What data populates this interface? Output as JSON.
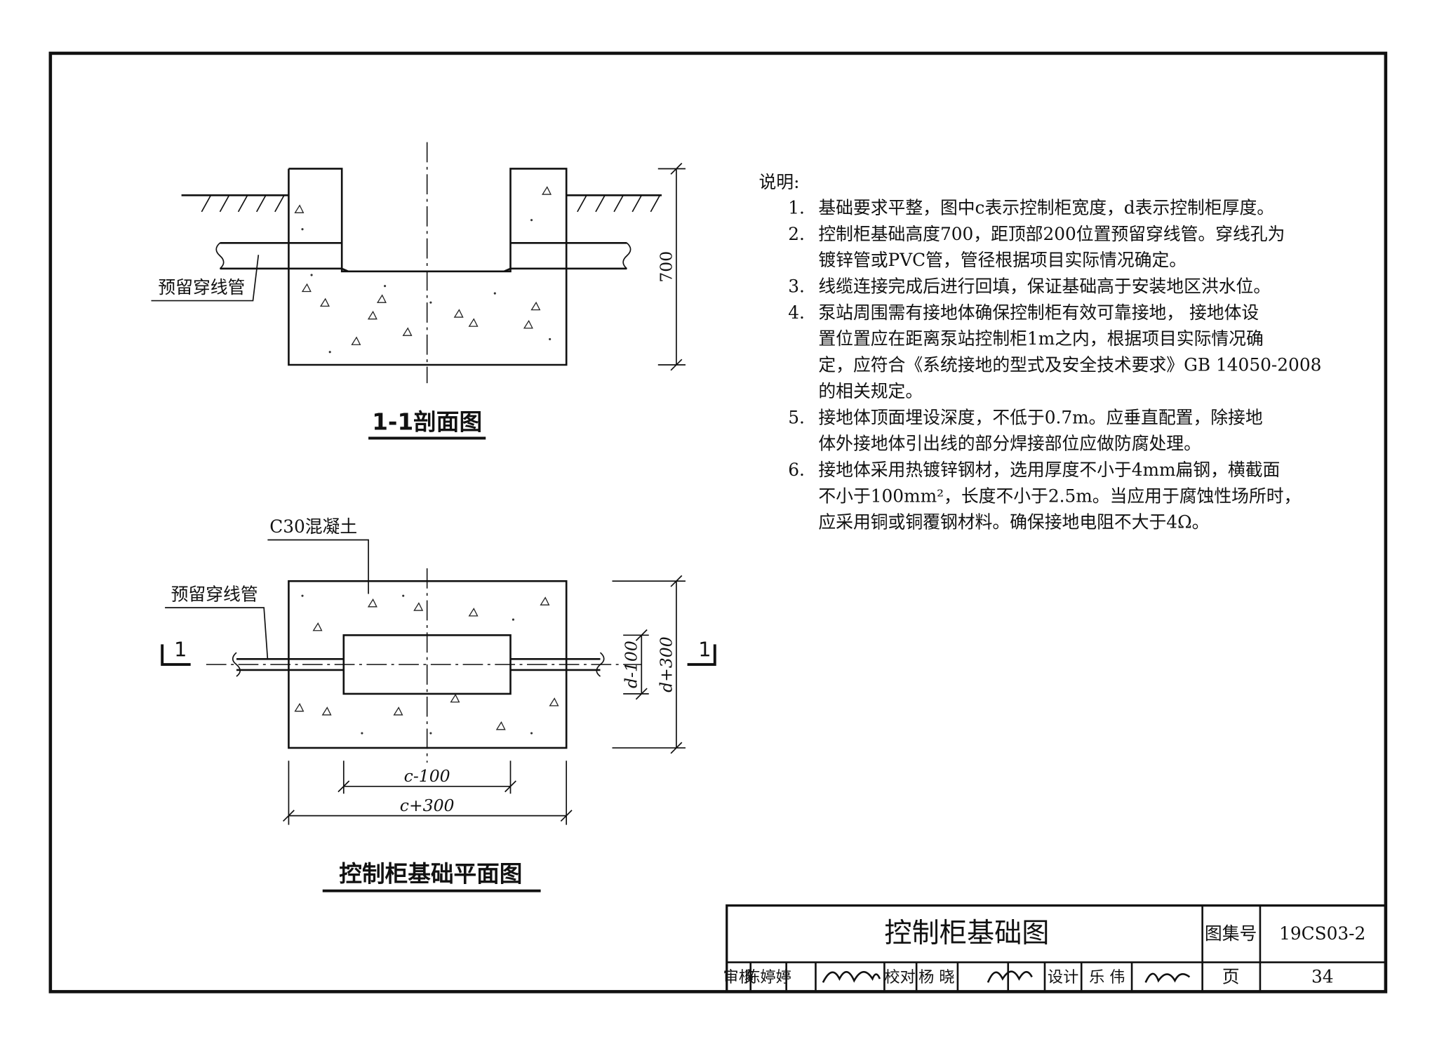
{
  "section_view": {
    "title": "1-1剖面图",
    "pipe_label": "预留穿线管",
    "height_dim": "700"
  },
  "plan_view": {
    "title": "控制柜基础平面图",
    "concrete_label": "C30混凝土",
    "pipe_label": "预留穿线管",
    "section_mark_left": "1",
    "section_mark_right": "1",
    "inner_depth_dim": "d-100",
    "outer_depth_dim": "d+300",
    "inner_width_dim": "c-100",
    "outer_width_dim": "c+300"
  },
  "notes": {
    "title": "说明:",
    "items": [
      {
        "number": "1.",
        "lines": [
          "基础要求平整，图中c表示控制柜宽度，d表示控制柜厚度。"
        ]
      },
      {
        "number": "2.",
        "lines": [
          "控制柜基础高度700，距顶部200位置预留穿线管。穿线孔为",
          "镀锌管或PVC管，管径根据项目实际情况确定。"
        ]
      },
      {
        "number": "3.",
        "lines": [
          "线缆连接完成后进行回填，保证基础高于安装地区洪水位。"
        ]
      },
      {
        "number": "4.",
        "lines": [
          "泵站周围需有接地体确保控制柜有效可靠接地， 接地体设",
          "置位置应在距离泵站控制柜1m之内，根据项目实际情况确",
          "定，应符合《系统接地的型式及安全技术要求》GB 14050-2008",
          "的相关规定。"
        ]
      },
      {
        "number": "5.",
        "lines": [
          "接地体顶面埋设深度，不低于0.7m。应垂直配置，除接地",
          "体外接地体引出线的部分焊接部位应做防腐处理。"
        ]
      },
      {
        "number": "6.",
        "lines": [
          "接地体采用热镀锌钢材，选用厚度不小于4mm扁钢，横截面",
          "不小于100mm²，长度不小于2.5m。当应用于腐蚀性场所时，",
          "应采用铜或铜覆钢材料。确保接地电阻不大于4Ω。"
        ]
      }
    ]
  },
  "title_block": {
    "drawing_title": "控制柜基础图",
    "atlas_label": "图集号",
    "atlas_number": "19CS03-2",
    "page_label": "页",
    "page_number": "34",
    "review_label": "审核",
    "reviewer": "陈婷婷",
    "check_label": "校对",
    "checker": "杨 晓",
    "design_label": "设计",
    "designer": "乐 伟"
  }
}
